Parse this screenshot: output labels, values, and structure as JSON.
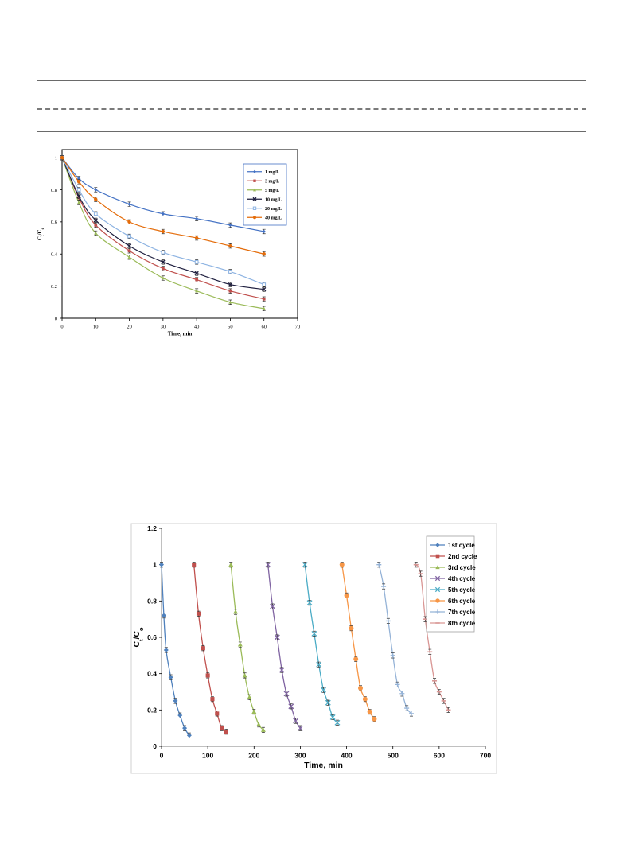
{
  "chart_data": [
    {
      "type": "line",
      "title": "",
      "xlabel": "Time, min",
      "ylabel": "Ct/Co",
      "xlim": [
        0,
        70
      ],
      "ylim": [
        0,
        1.05
      ],
      "xticks": [
        "0",
        "10",
        "20",
        "30",
        "40",
        "50",
        "60",
        "70"
      ],
      "yticks": [
        "0",
        "0.2",
        "0.4",
        "0.6",
        "0.8",
        "1"
      ],
      "grid": false,
      "legend_position": "top-right",
      "series": [
        {
          "name": "1 mg/L",
          "color": "#4472c4",
          "marker": "diamond",
          "x": [
            0,
            5,
            10,
            20,
            30,
            40,
            50,
            60
          ],
          "y": [
            1.0,
            0.87,
            0.8,
            0.71,
            0.65,
            0.62,
            0.58,
            0.54
          ]
        },
        {
          "name": "3 mg/L",
          "color": "#c0504d",
          "marker": "square",
          "x": [
            0,
            5,
            10,
            20,
            30,
            40,
            50,
            60
          ],
          "y": [
            1.0,
            0.75,
            0.58,
            0.42,
            0.31,
            0.24,
            0.17,
            0.12
          ]
        },
        {
          "name": "5 mg/L",
          "color": "#9bbb59",
          "marker": "triangle",
          "x": [
            0,
            5,
            10,
            20,
            30,
            40,
            50,
            60
          ],
          "y": [
            1.0,
            0.72,
            0.53,
            0.38,
            0.25,
            0.17,
            0.1,
            0.06
          ]
        },
        {
          "name": "10 mg/L",
          "color": "#1f1f3f",
          "marker": "cross",
          "x": [
            0,
            5,
            10,
            20,
            30,
            40,
            50,
            60
          ],
          "y": [
            1.0,
            0.76,
            0.61,
            0.45,
            0.35,
            0.28,
            0.21,
            0.18
          ]
        },
        {
          "name": "20 mg/L",
          "color": "#8db3e2",
          "marker": "square-open",
          "x": [
            0,
            5,
            10,
            20,
            30,
            40,
            50,
            60
          ],
          "y": [
            1.0,
            0.8,
            0.65,
            0.51,
            0.41,
            0.35,
            0.29,
            0.21
          ]
        },
        {
          "name": "40 mg/L",
          "color": "#e46c0a",
          "marker": "circle",
          "x": [
            0,
            5,
            10,
            20,
            30,
            40,
            50,
            60
          ],
          "y": [
            1.0,
            0.85,
            0.74,
            0.6,
            0.54,
            0.5,
            0.45,
            0.4
          ]
        }
      ]
    },
    {
      "type": "line",
      "title": "",
      "xlabel": "Time, min",
      "ylabel": "Ct/Co",
      "xlim": [
        0,
        700
      ],
      "ylim": [
        0,
        1.2
      ],
      "xticks": [
        "0",
        "100",
        "200",
        "300",
        "400",
        "500",
        "600",
        "700"
      ],
      "yticks": [
        "0",
        "0.2",
        "0.4",
        "0.6",
        "0.8",
        "1",
        "1.2"
      ],
      "grid": false,
      "legend_position": "top-right",
      "series": [
        {
          "name": "1st cycle",
          "color": "#4f81bd",
          "marker": "diamond",
          "x": [
            0,
            5,
            10,
            20,
            30,
            40,
            50,
            60
          ],
          "y": [
            1.0,
            0.72,
            0.53,
            0.38,
            0.25,
            0.17,
            0.1,
            0.06
          ]
        },
        {
          "name": "2nd cycle",
          "color": "#c0504d",
          "marker": "square",
          "x": [
            70,
            80,
            90,
            100,
            110,
            120,
            130,
            140
          ],
          "y": [
            1.0,
            0.73,
            0.54,
            0.39,
            0.26,
            0.18,
            0.1,
            0.08
          ]
        },
        {
          "name": "3rd cycle",
          "color": "#9bbb59",
          "marker": "triangle",
          "x": [
            150,
            160,
            170,
            180,
            190,
            200,
            210,
            220
          ],
          "y": [
            1.0,
            0.74,
            0.56,
            0.39,
            0.27,
            0.19,
            0.12,
            0.09
          ]
        },
        {
          "name": "4th cycle",
          "color": "#8064a2",
          "marker": "cross",
          "x": [
            230,
            240,
            250,
            260,
            270,
            280,
            290,
            300
          ],
          "y": [
            1.0,
            0.77,
            0.6,
            0.42,
            0.29,
            0.22,
            0.14,
            0.1
          ]
        },
        {
          "name": "5th cycle",
          "color": "#4bacc6",
          "marker": "cross",
          "x": [
            310,
            320,
            330,
            340,
            350,
            360,
            370,
            380
          ],
          "y": [
            1.0,
            0.79,
            0.62,
            0.45,
            0.31,
            0.24,
            0.16,
            0.13
          ]
        },
        {
          "name": "6th cycle",
          "color": "#f79646",
          "marker": "circle",
          "x": [
            390,
            400,
            410,
            420,
            430,
            440,
            450,
            460
          ],
          "y": [
            1.0,
            0.83,
            0.65,
            0.48,
            0.32,
            0.26,
            0.19,
            0.15
          ]
        },
        {
          "name": "7th cycle",
          "color": "#95b3d7",
          "marker": "plus",
          "x": [
            470,
            480,
            490,
            500,
            510,
            520,
            530,
            540
          ],
          "y": [
            1.0,
            0.88,
            0.69,
            0.5,
            0.34,
            0.29,
            0.21,
            0.18
          ]
        },
        {
          "name": "8th cycle",
          "color": "#d99694",
          "marker": "dash",
          "x": [
            550,
            560,
            570,
            580,
            590,
            600,
            610,
            620
          ],
          "y": [
            1.0,
            0.95,
            0.7,
            0.52,
            0.36,
            0.3,
            0.25,
            0.2
          ]
        }
      ]
    }
  ]
}
